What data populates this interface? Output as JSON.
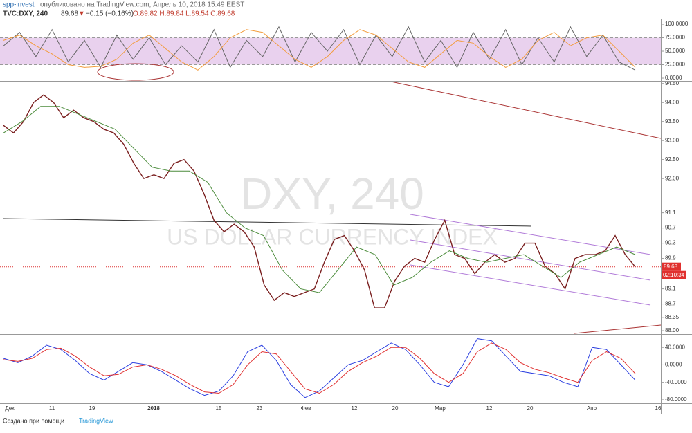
{
  "header": {
    "author": "spp-invest",
    "published": "опубликовано на TradingView.com, Апрель 10, 2018 15:49 EEST",
    "symbol": "TVC:DXY, 240",
    "last": "89.68",
    "arrow": "▼",
    "change": "−0.15 (−0.16%)",
    "ohlc": "O:89.82 H:89.84 L:89.54 C:89.68"
  },
  "chart_data": [
    {
      "type": "line",
      "ylim": [
        -5.1,
        109
      ],
      "band": [
        25,
        75
      ],
      "yticks": [
        {
          "value": 100,
          "label": "100.0000"
        },
        {
          "value": 75,
          "label": "75.0000"
        },
        {
          "value": 50,
          "label": "50.0000"
        },
        {
          "value": 25,
          "label": "25.0000"
        },
        {
          "value": 0,
          "label": "0.0000"
        }
      ],
      "series": [
        {
          "color": "#666666",
          "values": [
            60,
            85,
            40,
            90,
            30,
            70,
            20,
            80,
            35,
            75,
            25,
            60,
            30,
            90,
            20,
            70,
            40,
            95,
            30,
            85,
            50,
            90,
            25,
            80,
            40,
            95,
            30,
            70,
            20,
            85,
            35,
            90,
            25,
            75,
            30,
            95,
            40,
            80,
            30,
            15
          ]
        },
        {
          "color": "#f39c3c",
          "values": [
            70,
            80,
            60,
            45,
            25,
            20,
            22,
            35,
            65,
            80,
            55,
            30,
            15,
            40,
            75,
            90,
            85,
            60,
            35,
            20,
            40,
            70,
            90,
            80,
            55,
            30,
            20,
            45,
            70,
            65,
            40,
            20,
            35,
            70,
            85,
            60,
            75,
            80,
            50,
            20
          ]
        }
      ]
    },
    {
      "type": "line",
      "ylim": [
        87.91,
        94.55
      ],
      "watermark": "DXY, 240",
      "watermark_sub": "US DOLLAR CURRENCY INDEX",
      "last": {
        "value": 89.68,
        "label": "89.68"
      },
      "countdown": "02:10:34",
      "xtick_labels": [
        "Дек",
        "11",
        "19",
        "2018",
        "15",
        "23",
        "Фев",
        "12",
        "20",
        "Мар",
        "12",
        "20",
        "Апр",
        "16"
      ],
      "yticks": [
        {
          "value": 94.5,
          "label": "94.50"
        },
        {
          "value": 94,
          "label": "94.00"
        },
        {
          "value": 93.5,
          "label": "93.50"
        },
        {
          "value": 93,
          "label": "93.00"
        },
        {
          "value": 92.5,
          "label": "92.50"
        },
        {
          "value": 92,
          "label": "92.00"
        },
        91.1,
        90.7,
        90.3,
        89.9,
        89.1,
        88.7,
        88.35,
        {
          "value": 88,
          "label": "88.00"
        }
      ],
      "series": [
        {
          "color": "#7a1f1f",
          "values": [
            93.4,
            93.2,
            93.5,
            94.0,
            94.2,
            94.0,
            93.6,
            93.8,
            93.6,
            93.5,
            93.3,
            93.2,
            92.9,
            92.4,
            92.0,
            92.1,
            92.0,
            92.4,
            92.5,
            92.2,
            91.6,
            90.9,
            90.6,
            90.8,
            90.6,
            90.2,
            89.2,
            88.8,
            89.0,
            88.9,
            89.0,
            89.1,
            89.8,
            90.4,
            90.5,
            90.1,
            89.6,
            88.6,
            88.6,
            89.3,
            89.7,
            89.9,
            89.8,
            90.4,
            90.9,
            90.0,
            89.9,
            89.5,
            89.8,
            90.0,
            89.8,
            89.9,
            90.3,
            90.3,
            89.7,
            89.5,
            89.1,
            89.9,
            90.0,
            90.0,
            90.1,
            90.5,
            90.0,
            89.68
          ]
        },
        {
          "color": "#4c8c3c",
          "values": [
            93.2,
            93.5,
            93.9,
            93.9,
            93.7,
            93.5,
            93.3,
            92.8,
            92.3,
            92.2,
            92.2,
            91.9,
            91.1,
            90.7,
            90.5,
            89.6,
            89.1,
            89.0,
            89.6,
            90.2,
            90.0,
            89.2,
            89.4,
            89.8,
            90.1,
            89.9,
            89.8,
            89.9,
            90.0,
            89.7,
            89.4,
            89.8,
            90.0,
            90.2,
            90.0
          ]
        }
      ]
    },
    {
      "type": "line",
      "ylim": [
        -88,
        68.8
      ],
      "yticks": [
        {
          "value": 40,
          "label": "40.0000"
        },
        {
          "value": 0,
          "label": "0.0000"
        },
        {
          "value": -40,
          "label": "-40.0000"
        },
        {
          "value": -80,
          "label": "-80.0000"
        }
      ],
      "series": [
        {
          "color": "#2b3fe0",
          "values": [
            15,
            5,
            20,
            45,
            35,
            10,
            -20,
            -35,
            -15,
            5,
            0,
            -15,
            -35,
            -55,
            -70,
            -60,
            -25,
            30,
            45,
            10,
            -45,
            -75,
            -60,
            -30,
            0,
            10,
            30,
            50,
            35,
            0,
            -40,
            -50,
            0,
            60,
            55,
            20,
            -15,
            -20,
            -25,
            -40,
            -50,
            40,
            35,
            0,
            -35
          ]
        },
        {
          "color": "#e03030",
          "values": [
            12,
            8,
            15,
            35,
            38,
            20,
            -5,
            -25,
            -22,
            -5,
            0,
            -10,
            -25,
            -45,
            -62,
            -65,
            -45,
            0,
            30,
            25,
            -15,
            -55,
            -65,
            -45,
            -15,
            5,
            20,
            40,
            40,
            15,
            -20,
            -40,
            -20,
            30,
            50,
            35,
            5,
            -10,
            -18,
            -30,
            -40,
            10,
            30,
            15,
            -20
          ]
        }
      ]
    }
  ],
  "footer": {
    "made": "Создано при помощи",
    "brand": "TradingView"
  }
}
